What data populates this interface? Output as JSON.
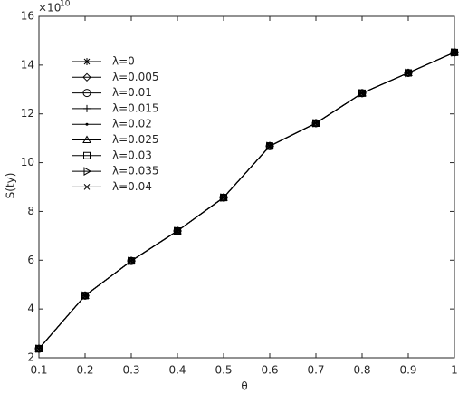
{
  "chart_data": {
    "type": "line",
    "x_label": "θ",
    "y_label": "S(ty)",
    "y_multiplier": {
      "base": "×10",
      "exponent": "10"
    },
    "x": [
      0.1,
      0.2,
      0.3,
      0.4,
      0.5,
      0.6,
      0.7,
      0.8,
      0.9,
      1
    ],
    "xlim": [
      0.1,
      1
    ],
    "xticks": [
      0.1,
      0.2,
      0.3,
      0.4,
      0.5,
      0.6,
      0.7,
      0.8,
      0.9,
      1
    ],
    "ylim": [
      2,
      16
    ],
    "yticks": [
      2,
      4,
      6,
      8,
      10,
      12,
      14,
      16
    ],
    "grid": false,
    "legend_position": "upper-left",
    "series": [
      {
        "name": "λ=0",
        "color": "#000000",
        "marker": "asterisk",
        "values": [
          2.37,
          4.55,
          5.97,
          7.2,
          8.57,
          10.68,
          11.62,
          12.85,
          13.68,
          14.52
        ]
      },
      {
        "name": "λ=0.005",
        "color": "#000000",
        "marker": "diamond",
        "values": [
          2.37,
          4.55,
          5.97,
          7.2,
          8.57,
          10.68,
          11.62,
          12.85,
          13.68,
          14.52
        ]
      },
      {
        "name": "λ=0.01",
        "color": "#000000",
        "marker": "circle",
        "values": [
          2.37,
          4.55,
          5.97,
          7.2,
          8.57,
          10.68,
          11.62,
          12.85,
          13.68,
          14.52
        ]
      },
      {
        "name": "λ=0.015",
        "color": "#000000",
        "marker": "plus",
        "values": [
          2.37,
          4.55,
          5.97,
          7.2,
          8.57,
          10.68,
          11.62,
          12.85,
          13.68,
          14.52
        ]
      },
      {
        "name": "λ=0.02",
        "color": "#000000",
        "marker": "point",
        "values": [
          2.37,
          4.55,
          5.97,
          7.2,
          8.57,
          10.68,
          11.62,
          12.85,
          13.68,
          14.52
        ]
      },
      {
        "name": "λ=0.025",
        "color": "#000000",
        "marker": "triangle-up",
        "values": [
          2.37,
          4.55,
          5.97,
          7.2,
          8.57,
          10.68,
          11.62,
          12.85,
          13.68,
          14.52
        ]
      },
      {
        "name": "λ=0.03",
        "color": "#000000",
        "marker": "square",
        "values": [
          2.37,
          4.55,
          5.97,
          7.2,
          8.57,
          10.68,
          11.62,
          12.85,
          13.68,
          14.52
        ]
      },
      {
        "name": "λ=0.035",
        "color": "#000000",
        "marker": "triangle-right",
        "values": [
          2.37,
          4.55,
          5.97,
          7.2,
          8.57,
          10.68,
          11.62,
          12.85,
          13.68,
          14.52
        ]
      },
      {
        "name": "λ=0.04",
        "color": "#000000",
        "marker": "x",
        "values": [
          2.37,
          4.55,
          5.97,
          7.2,
          8.57,
          10.68,
          11.62,
          12.85,
          13.68,
          14.52
        ]
      }
    ]
  }
}
